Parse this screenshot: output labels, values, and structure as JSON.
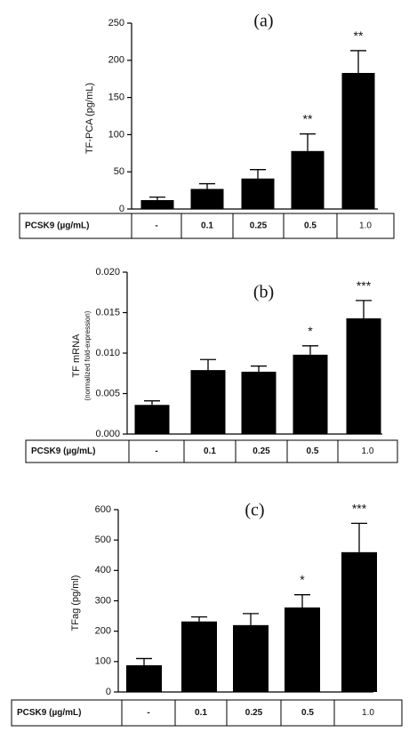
{
  "chart_data": [
    {
      "type": "bar",
      "panel": "(a)",
      "ylabel": "TF-PCA (pg/mL)",
      "ylabel_sub": "",
      "ylim": [
        0,
        250
      ],
      "yticks": [
        "0",
        "50",
        "100",
        "150",
        "200",
        "250"
      ],
      "yticks_values": [
        0,
        50,
        100,
        150,
        200,
        250
      ],
      "values": [
        12,
        27,
        41,
        78,
        183
      ],
      "errors": [
        4,
        7,
        12,
        23,
        30
      ],
      "annotations": [
        "",
        "",
        "",
        "**",
        "**"
      ],
      "table": {
        "label": "PCSK9 (µg/mL)",
        "cells": [
          "-",
          "0.1",
          "0.25",
          "0.5",
          "1.0"
        ]
      },
      "color": "#000000"
    },
    {
      "type": "bar",
      "panel": "(b)",
      "ylabel": "TF mRNA",
      "ylabel_sub": "(normalized fold-expression)",
      "ylim": [
        0,
        0.02
      ],
      "yticks": [
        "0.000",
        "0.005",
        "0.010",
        "0.015",
        "0.020"
      ],
      "yticks_values": [
        0,
        0.005,
        0.01,
        0.015,
        0.02
      ],
      "values": [
        0.0036,
        0.0079,
        0.0077,
        0.0098,
        0.0143
      ],
      "errors": [
        0.0005,
        0.0013,
        0.0007,
        0.0011,
        0.0022
      ],
      "annotations": [
        "",
        "",
        "",
        "*",
        "***"
      ],
      "table": {
        "label": "PCSK9 (µg/mL)",
        "cells": [
          "-",
          "0.1",
          "0.25",
          "0.5",
          "1.0"
        ]
      },
      "color": "#000000"
    },
    {
      "type": "bar",
      "panel": "(c)",
      "ylabel": "TFag (pg/ml)",
      "ylabel_sub": "",
      "ylim": [
        0,
        600
      ],
      "yticks": [
        "0",
        "100",
        "200",
        "300",
        "400",
        "500",
        "600"
      ],
      "yticks_values": [
        0,
        100,
        200,
        300,
        400,
        500,
        600
      ],
      "values": [
        88,
        232,
        220,
        278,
        460
      ],
      "errors": [
        22,
        15,
        38,
        42,
        95
      ],
      "annotations": [
        "",
        "",
        "",
        "*",
        "***"
      ],
      "table": {
        "label": "PCSK9 (µg/mL)",
        "cells": [
          "-",
          "0.1",
          "0.25",
          "0.5",
          "1.0"
        ]
      },
      "color": "#000000"
    }
  ]
}
